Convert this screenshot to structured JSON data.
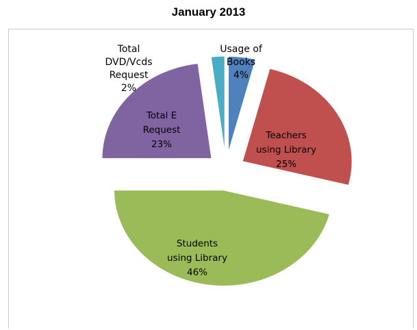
{
  "chart_data": {
    "type": "pie",
    "title": "January 2013",
    "slices": [
      {
        "name": "Usage of Books",
        "label_lines": [
          "Usage of",
          "Books",
          "4%"
        ],
        "value": 4,
        "color": "#4f81bd"
      },
      {
        "name": "Teachers using Library",
        "label_lines": [
          "Teachers",
          "using Library",
          "25%"
        ],
        "value": 25,
        "color": "#c0504d"
      },
      {
        "name": "Students using Library",
        "label_lines": [
          "Students",
          "using Library",
          "46%"
        ],
        "value": 46,
        "color": "#9bbb59"
      },
      {
        "name": "Total E Request",
        "label_lines": [
          "Total E",
          "Request",
          "23%"
        ],
        "value": 23,
        "color": "#8064a2"
      },
      {
        "name": "Total DVD/Vcds Request",
        "label_lines": [
          "Total",
          "DVD/Vcds",
          "Request",
          "2%"
        ],
        "value": 2,
        "color": "#4bacc6"
      }
    ],
    "exploded": true,
    "legend": "none"
  }
}
